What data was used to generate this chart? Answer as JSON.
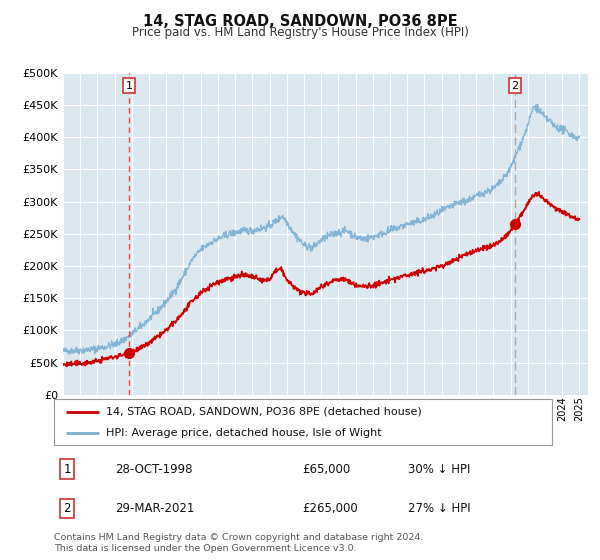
{
  "title": "14, STAG ROAD, SANDOWN, PO36 8PE",
  "subtitle": "Price paid vs. HM Land Registry's House Price Index (HPI)",
  "legend_label_red": "14, STAG ROAD, SANDOWN, PO36 8PE (detached house)",
  "legend_label_blue": "HPI: Average price, detached house, Isle of Wight",
  "transaction1_label": "1",
  "transaction1_date": "28-OCT-1998",
  "transaction1_price": "£65,000",
  "transaction1_hpi": "30% ↓ HPI",
  "transaction2_label": "2",
  "transaction2_date": "29-MAR-2021",
  "transaction2_price": "£265,000",
  "transaction2_hpi": "27% ↓ HPI",
  "footer": "Contains HM Land Registry data © Crown copyright and database right 2024.\nThis data is licensed under the Open Government Licence v3.0.",
  "red_color": "#cc0000",
  "blue_color": "#7ab0d4",
  "vline1_color": "#ee4444",
  "vline2_color": "#aaaaaa",
  "marker_color": "#cc0000",
  "plot_bg_color": "#dce8f0",
  "grid_color": "#ffffff",
  "ylim": [
    0,
    500000
  ],
  "xlim_start": 1995.0,
  "xlim_end": 2025.5,
  "transaction1_x": 1998.83,
  "transaction1_y": 65000,
  "transaction2_x": 2021.25,
  "transaction2_y": 265000
}
